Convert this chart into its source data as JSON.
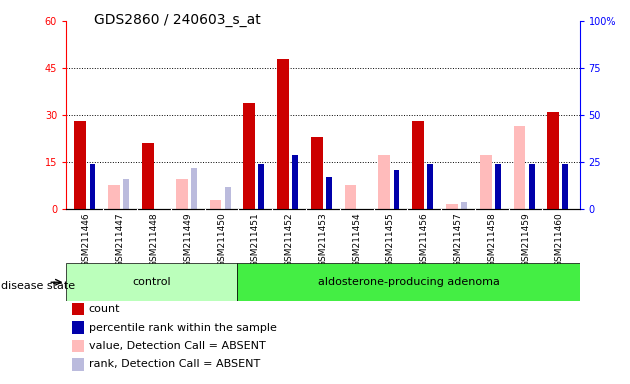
{
  "title": "GDS2860 / 240603_s_at",
  "samples": [
    "GSM211446",
    "GSM211447",
    "GSM211448",
    "GSM211449",
    "GSM211450",
    "GSM211451",
    "GSM211452",
    "GSM211453",
    "GSM211454",
    "GSM211455",
    "GSM211456",
    "GSM211457",
    "GSM211458",
    "GSM211459",
    "GSM211460"
  ],
  "count": [
    28,
    0,
    21,
    0,
    0,
    34,
    48,
    23,
    0,
    0,
    28,
    0,
    0,
    0,
    31
  ],
  "percentile": [
    24,
    0,
    0,
    0,
    0,
    24,
    29,
    17,
    0,
    21,
    24,
    0,
    24,
    24,
    24
  ],
  "value_absent": [
    0,
    13,
    0,
    16,
    5,
    0,
    0,
    0,
    13,
    29,
    0,
    3,
    29,
    44,
    0
  ],
  "rank_absent": [
    0,
    16,
    0,
    22,
    12,
    0,
    0,
    0,
    0,
    0,
    0,
    4,
    24,
    24,
    0
  ],
  "groups": {
    "control_count": 5,
    "adenoma_count": 10
  },
  "ylim_left": [
    0,
    60
  ],
  "ylim_right": [
    0,
    100
  ],
  "yticks_left": [
    0,
    15,
    30,
    45,
    60
  ],
  "yticks_right": [
    0,
    25,
    50,
    75,
    100
  ],
  "color_count": "#cc0000",
  "color_percentile": "#0000aa",
  "color_value_absent": "#ffbbbb",
  "color_rank_absent": "#bbbbdd",
  "color_control_bg": "#bbffbb",
  "color_adenoma_bg": "#44ee44",
  "color_xtick_bg": "#cccccc",
  "disease_state_label": "disease state",
  "control_label": "control",
  "adenoma_label": "aldosterone-producing adenoma",
  "legend_items": [
    {
      "color": "#cc0000",
      "label": "count"
    },
    {
      "color": "#0000aa",
      "label": "percentile rank within the sample"
    },
    {
      "color": "#ffbbbb",
      "label": "value, Detection Call = ABSENT"
    },
    {
      "color": "#bbbbdd",
      "label": "rank, Detection Call = ABSENT"
    }
  ]
}
